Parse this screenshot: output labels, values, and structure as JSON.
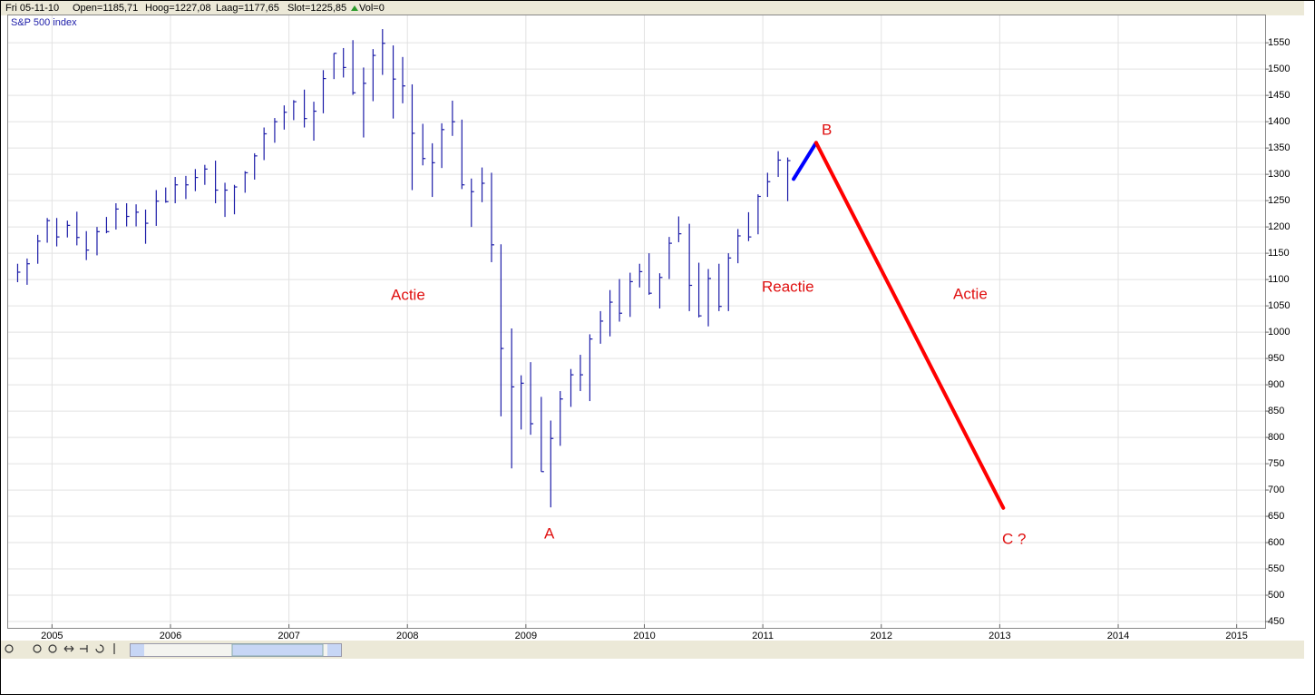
{
  "header": {
    "date": "Fri 05-11-10",
    "open": "Open=1185,71",
    "high": "Hoog=1227,08",
    "low": "Laag=1177,65",
    "close": "Slot=1225,85",
    "volume": "Vol=0"
  },
  "chart_data": {
    "type": "ohlc",
    "title": "S&P 500 index",
    "xlim": [
      2004.63,
      2015.24
    ],
    "xticks": [
      2005,
      2006,
      2007,
      2008,
      2009,
      2010,
      2011,
      2012,
      2013,
      2014,
      2015
    ],
    "ylim": [
      438,
      1602
    ],
    "yticks": [
      450,
      500,
      550,
      600,
      650,
      700,
      750,
      800,
      850,
      900,
      950,
      1000,
      1050,
      1100,
      1150,
      1200,
      1250,
      1300,
      1350,
      1400,
      1450,
      1500,
      1550
    ],
    "grid": true,
    "series": [
      {
        "type": "ohlc",
        "name": "S&P 500 index",
        "color": "#1c1ca8",
        "x": [
          2004.71,
          2004.79,
          2004.88,
          2004.96,
          2005.04,
          2005.13,
          2005.21,
          2005.29,
          2005.38,
          2005.46,
          2005.54,
          2005.63,
          2005.71,
          2005.79,
          2005.88,
          2005.96,
          2006.04,
          2006.13,
          2006.21,
          2006.29,
          2006.38,
          2006.46,
          2006.54,
          2006.63,
          2006.71,
          2006.79,
          2006.88,
          2006.96,
          2007.04,
          2007.13,
          2007.21,
          2007.29,
          2007.38,
          2007.46,
          2007.54,
          2007.63,
          2007.71,
          2007.79,
          2007.88,
          2007.96,
          2008.04,
          2008.13,
          2008.21,
          2008.29,
          2008.38,
          2008.46,
          2008.54,
          2008.63,
          2008.71,
          2008.79,
          2008.88,
          2008.96,
          2009.04,
          2009.13,
          2009.21,
          2009.29,
          2009.38,
          2009.46,
          2009.54,
          2009.63,
          2009.71,
          2009.79,
          2009.88,
          2009.96,
          2010.04,
          2010.13,
          2010.21,
          2010.29,
          2010.38,
          2010.46,
          2010.54,
          2010.63,
          2010.71,
          2010.79,
          2010.88,
          2010.96,
          2011.04,
          2011.13,
          2011.21
        ],
        "high": [
          1130,
          1140,
          1185,
          1217,
          1217,
          1212,
          1229,
          1192,
          1200,
          1219,
          1245,
          1245,
          1243,
          1233,
          1270,
          1275,
          1295,
          1297,
          1310,
          1318,
          1326,
          1284,
          1280,
          1306,
          1340,
          1389,
          1407,
          1431,
          1441,
          1461,
          1438,
          1498,
          1530,
          1540,
          1555,
          1503,
          1538,
          1576,
          1545,
          1523,
          1471,
          1396,
          1359,
          1397,
          1440,
          1404,
          1292,
          1313,
          1303,
          1167,
          1007,
          918,
          943,
          877,
          832,
          888,
          930,
          957,
          996,
          1040,
          1080,
          1101,
          1113,
          1130,
          1150,
          1112,
          1181,
          1220,
          1206,
          1132,
          1120,
          1130,
          1150,
          1196,
          1228,
          1262,
          1303,
          1344,
          1332
        ],
        "low": [
          1095,
          1090,
          1130,
          1170,
          1163,
          1180,
          1165,
          1137,
          1146,
          1188,
          1195,
          1201,
          1201,
          1168,
          1202,
          1246,
          1245,
          1253,
          1268,
          1280,
          1245,
          1219,
          1224,
          1265,
          1290,
          1327,
          1360,
          1385,
          1403,
          1389,
          1364,
          1416,
          1481,
          1484,
          1451,
          1370,
          1439,
          1489,
          1406,
          1435,
          1270,
          1317,
          1257,
          1312,
          1373,
          1272,
          1200,
          1247,
          1133,
          840,
          741,
          815,
          805,
          735,
          667,
          784,
          858,
          888,
          869,
          978,
          992,
          1020,
          1029,
          1085,
          1071,
          1045,
          1101,
          1171,
          1040,
          1028,
          1011,
          1040,
          1040,
          1131,
          1173,
          1186,
          1257,
          1295,
          1249
        ],
        "close": [
          1114,
          1130,
          1173,
          1212,
          1181,
          1203,
          1180,
          1156,
          1191,
          1191,
          1234,
          1220,
          1228,
          1207,
          1249,
          1248,
          1280,
          1280,
          1294,
          1310,
          1270,
          1270,
          1276,
          1303,
          1335,
          1377,
          1400,
          1418,
          1438,
          1406,
          1420,
          1482,
          1530,
          1503,
          1455,
          1473,
          1526,
          1549,
          1481,
          1468,
          1378,
          1330,
          1322,
          1385,
          1400,
          1280,
          1267,
          1283,
          1166,
          969,
          896,
          903,
          826,
          735,
          798,
          873,
          919,
          919,
          987,
          1021,
          1057,
          1036,
          1096,
          1115,
          1074,
          1104,
          1169,
          1187,
          1089,
          1031,
          1102,
          1049,
          1141,
          1183,
          1181,
          1258,
          1286,
          1327,
          1326
        ]
      },
      {
        "type": "line",
        "color": "#0000ff",
        "x": [
          2011.26,
          2011.45
        ],
        "values": [
          1291,
          1360
        ]
      },
      {
        "type": "line",
        "color": "#ff0000",
        "x": [
          2011.45,
          2013.03
        ],
        "values": [
          1360,
          666
        ]
      }
    ],
    "annotations": [
      "Actie",
      "A",
      "Reactie",
      "B",
      "Actie",
      "C ?"
    ]
  }
}
